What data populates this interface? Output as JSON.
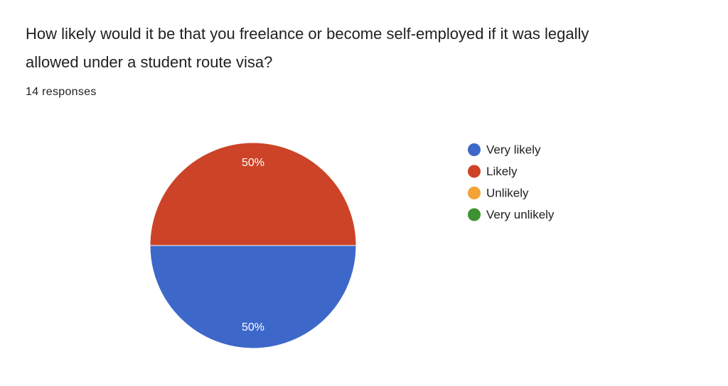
{
  "chart_data": {
    "type": "pie",
    "title": "How likely would it be that you freelance or become self-employed if it was legally allowed under a student route visa?",
    "subtitle": "14 responses",
    "categories": [
      "Very likely",
      "Likely",
      "Unlikely",
      "Very unlikely"
    ],
    "values": [
      50,
      50,
      0,
      0
    ],
    "value_labels": [
      "50%",
      "50%",
      null,
      null
    ],
    "colors": [
      "#3d68c9",
      "#cc4327",
      "#f4a236",
      "#3c9130"
    ],
    "legend": "right"
  }
}
